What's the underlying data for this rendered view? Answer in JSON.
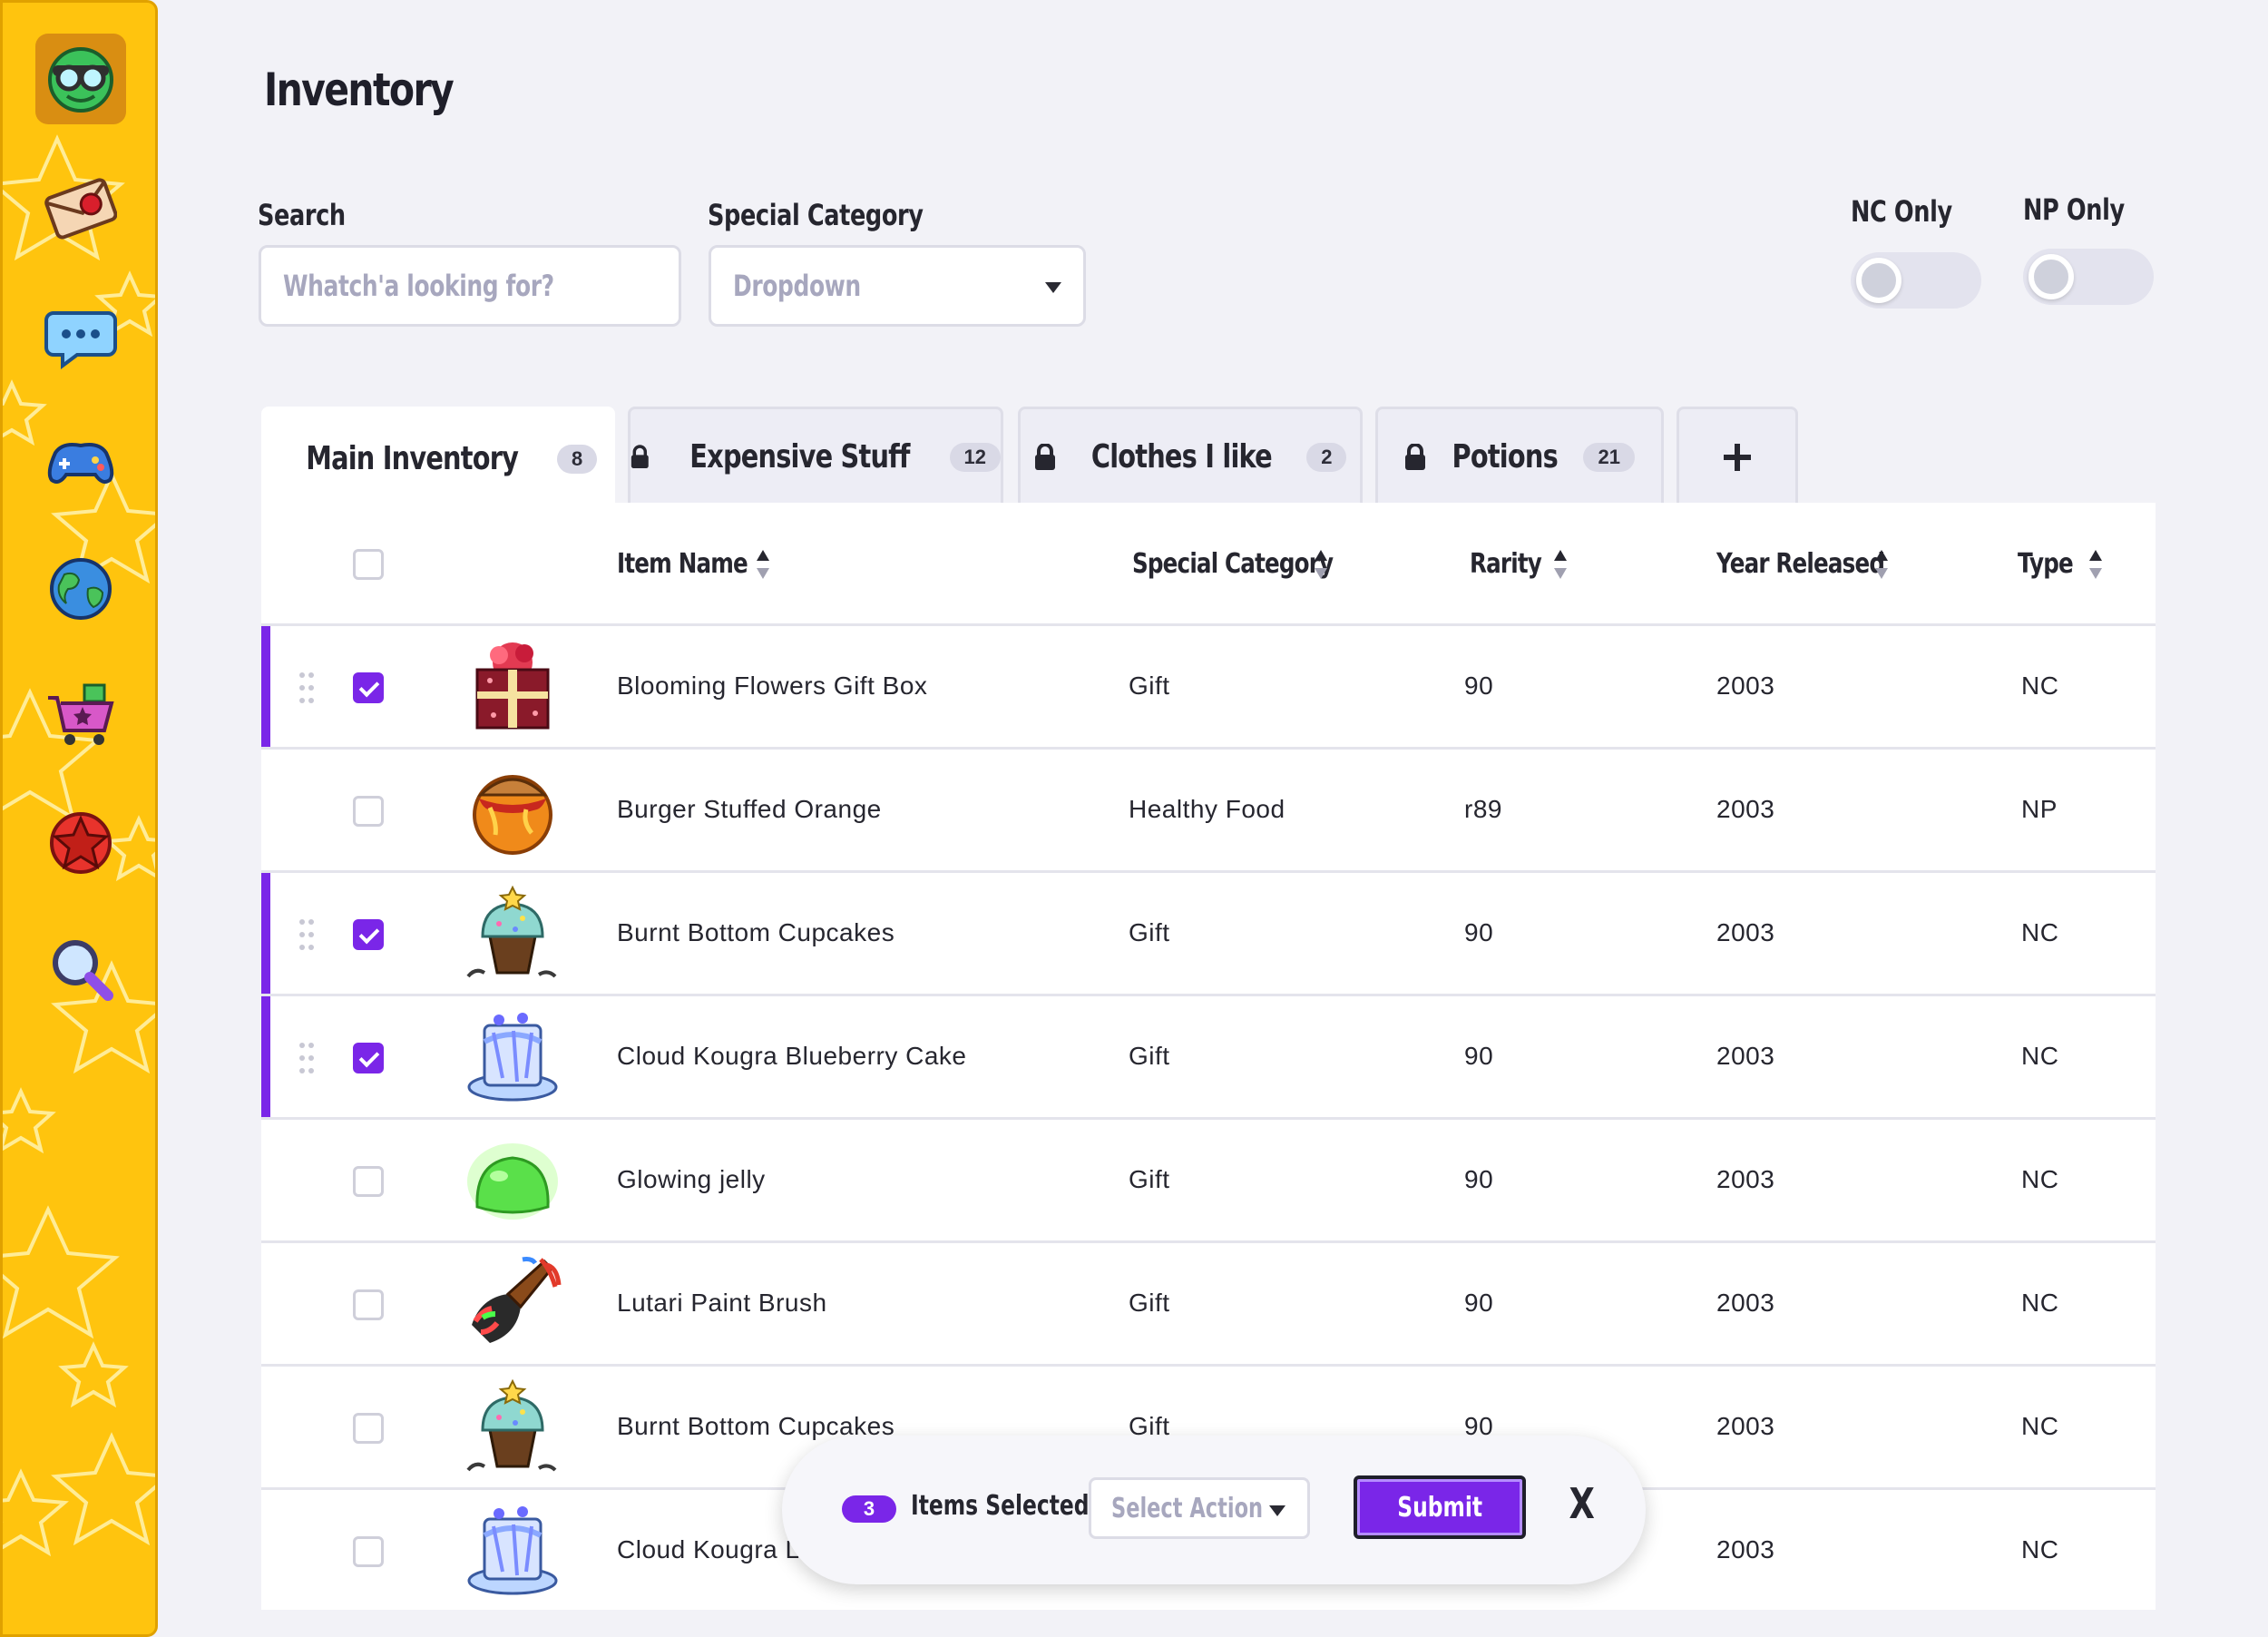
{
  "page": {
    "title": "Inventory"
  },
  "filters": {
    "search_label": "Search",
    "search_placeholder": "Whatch'a looking for?",
    "category_label": "Special Category",
    "category_value": "Dropdown",
    "nc_only_label": "NC Only",
    "np_only_label": "NP Only",
    "nc_only_on": false,
    "np_only_on": false
  },
  "tabs": [
    {
      "label": "Main Inventory",
      "count": "8",
      "locked": false,
      "active": true
    },
    {
      "label": "Expensive Stuff",
      "count": "12",
      "locked": true,
      "active": false
    },
    {
      "label": "Clothes I like",
      "count": "2",
      "locked": true,
      "active": false
    },
    {
      "label": "Potions",
      "count": "21",
      "locked": true,
      "active": false
    },
    {
      "label": "+",
      "icon": "plus-icon"
    }
  ],
  "table": {
    "columns": [
      "Item Name",
      "Special Category",
      "Rarity",
      "Year Released",
      "Type"
    ],
    "rows": [
      {
        "name": "Blooming Flowers Gift Box",
        "category": "Gift",
        "rarity": "90",
        "year": "2003",
        "type": "NC",
        "selected": true,
        "icon": "gift-box-icon"
      },
      {
        "name": "Burger Stuffed Orange",
        "category": "Healthy Food",
        "rarity": "r89",
        "year": "2003",
        "type": "NP",
        "selected": false,
        "icon": "burger-orange-icon"
      },
      {
        "name": "Burnt Bottom Cupcakes",
        "category": "Gift",
        "rarity": "90",
        "year": "2003",
        "type": "NC",
        "selected": true,
        "icon": "cupcake-icon"
      },
      {
        "name": "Cloud Kougra Blueberry Cake",
        "category": "Gift",
        "rarity": "90",
        "year": "2003",
        "type": "NC",
        "selected": true,
        "icon": "blueberry-cake-icon"
      },
      {
        "name": "Glowing jelly",
        "category": "Gift",
        "rarity": "90",
        "year": "2003",
        "type": "NC",
        "selected": false,
        "icon": "jelly-icon"
      },
      {
        "name": "Lutari Paint Brush",
        "category": "Gift",
        "rarity": "90",
        "year": "2003",
        "type": "NC",
        "selected": false,
        "icon": "paint-brush-icon"
      },
      {
        "name": "Burnt Bottom Cupcakes",
        "category": "Gift",
        "rarity": "90",
        "year": "2003",
        "type": "NC",
        "selected": false,
        "icon": "cupcake-icon"
      },
      {
        "name": "Cloud Kougra L",
        "category": "",
        "rarity": "",
        "year": "2003",
        "type": "NC",
        "selected": false,
        "icon": "blueberry-cake-icon"
      }
    ]
  },
  "action_bar": {
    "count": "3",
    "label": "Items Selected",
    "select_placeholder": "Select Action",
    "submit_label": "Submit",
    "close_label": "X"
  },
  "sidebar": {
    "items": [
      "avatar-icon",
      "mail-icon",
      "chat-icon",
      "gamepad-icon",
      "globe-icon",
      "shop-cart-icon",
      "star-badge-icon",
      "search-icon"
    ]
  },
  "colors": {
    "accent": "#7a26e8",
    "sidebar": "#ffc40e",
    "background": "#f2f2f7"
  }
}
